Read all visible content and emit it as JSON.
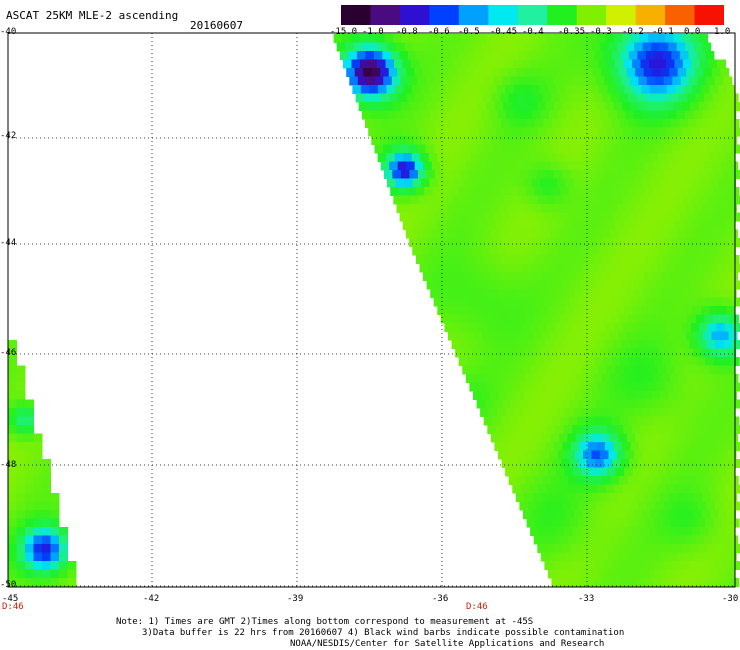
{
  "header": {
    "title": "ASCAT 25KM MLE-2 ascending",
    "date": "20160607"
  },
  "colorbar": {
    "labels": [
      "-15.0",
      "-1.0",
      "-0.8",
      "-0.6",
      "-0.5",
      "-0.45",
      "-0.4",
      "-0.35",
      "-0.3",
      "-0.2",
      "-0.1",
      "0.0",
      "1.0"
    ],
    "colors": [
      "#2a0030",
      "#4a0a80",
      "#3010d0",
      "#0040ff",
      "#00a0ff",
      "#00e8f0",
      "#20f0a0",
      "#20f020",
      "#80f000",
      "#d0f000",
      "#f8b000",
      "#f86000",
      "#f81000"
    ]
  },
  "axes": {
    "lat_labels": [
      "-40",
      "-42",
      "-44",
      "-46",
      "-48",
      "-50"
    ],
    "lon_labels": [
      "-45",
      "-42",
      "-39",
      "-36",
      "-33",
      "-30"
    ],
    "time_labels": [
      "D:46",
      "D:46"
    ]
  },
  "notes": {
    "line1": "Note: 1) Times are GMT 2)Times along bottom correspond to measurement at -45S",
    "line2": "3)Data buffer is 22 hrs from 20160607 4) Black wind barbs indicate possible contamination",
    "line3": "NOAA/NESDIS/Center for Satellite Applications and Research"
  }
}
